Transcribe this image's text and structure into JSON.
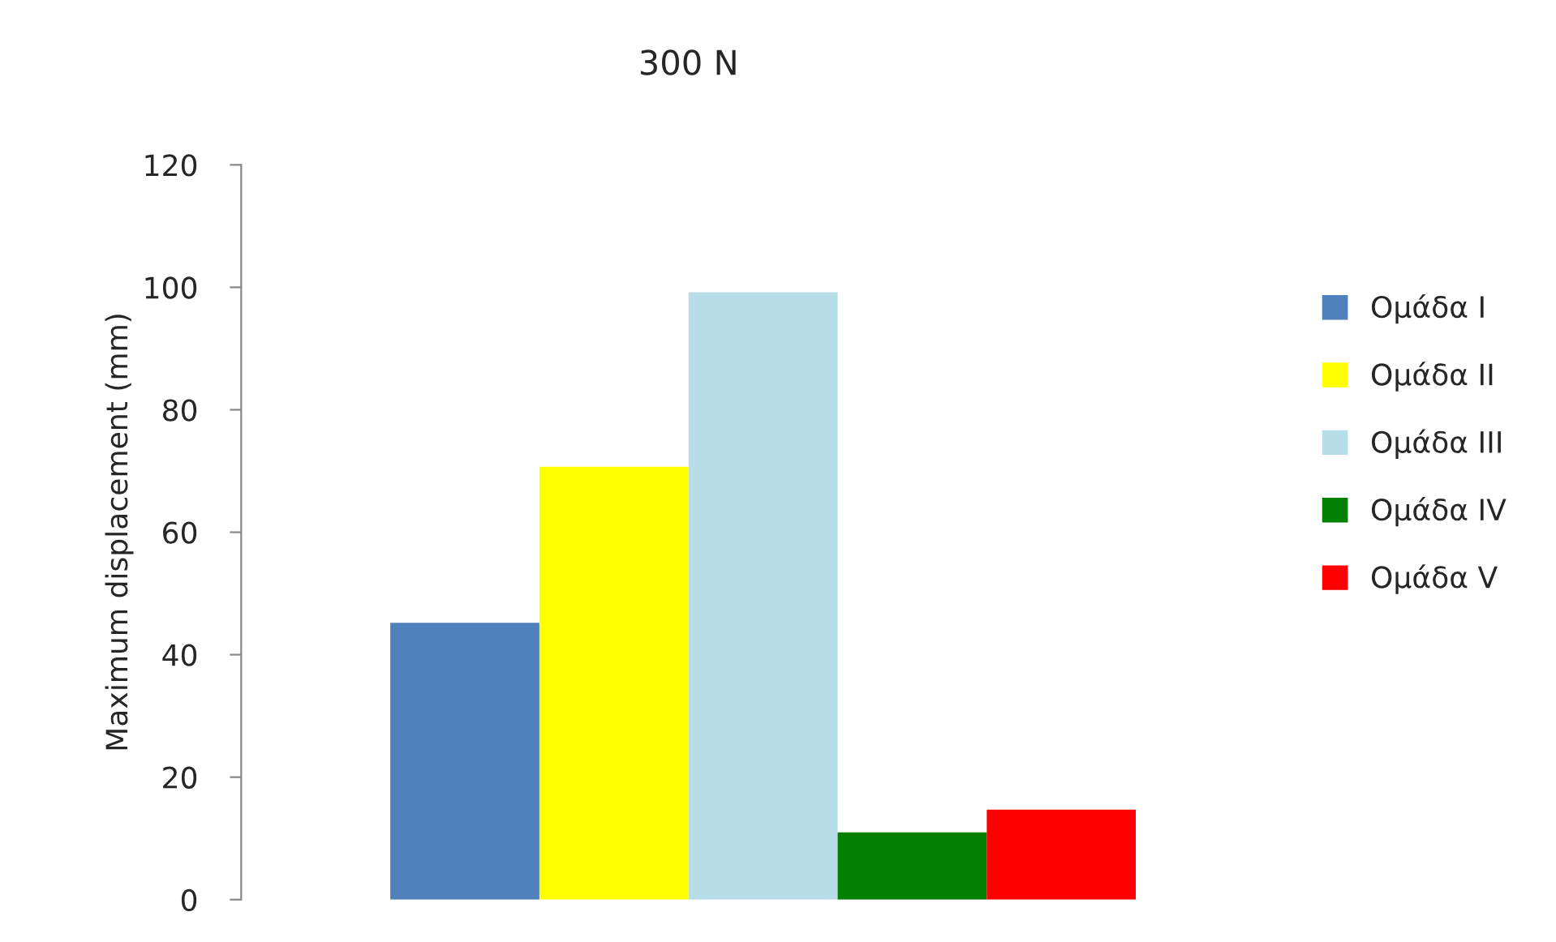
{
  "chart_data": {
    "type": "bar",
    "title": "300 N",
    "ylabel": "Maximum displacement (mm)",
    "categories": [
      null
    ],
    "series": [
      {
        "name": "Ομάδα I",
        "color": "#4f81bd",
        "values": [
          45.2
        ]
      },
      {
        "name": "Ομάδα II",
        "color": "#ffff00",
        "values": [
          70.7
        ]
      },
      {
        "name": "Ομάδα III",
        "color": "#b7dde8",
        "values": [
          99.2
        ]
      },
      {
        "name": "Ομάδα IV",
        "color": "#008000",
        "values": [
          11.0
        ]
      },
      {
        "name": "Ομάδα V",
        "color": "#ff0000",
        "values": [
          14.7
        ]
      }
    ],
    "ylim": [
      0,
      120
    ],
    "yticks": [
      0,
      20,
      40,
      60,
      80,
      100,
      120
    ],
    "legend": "right",
    "grid": false
  }
}
